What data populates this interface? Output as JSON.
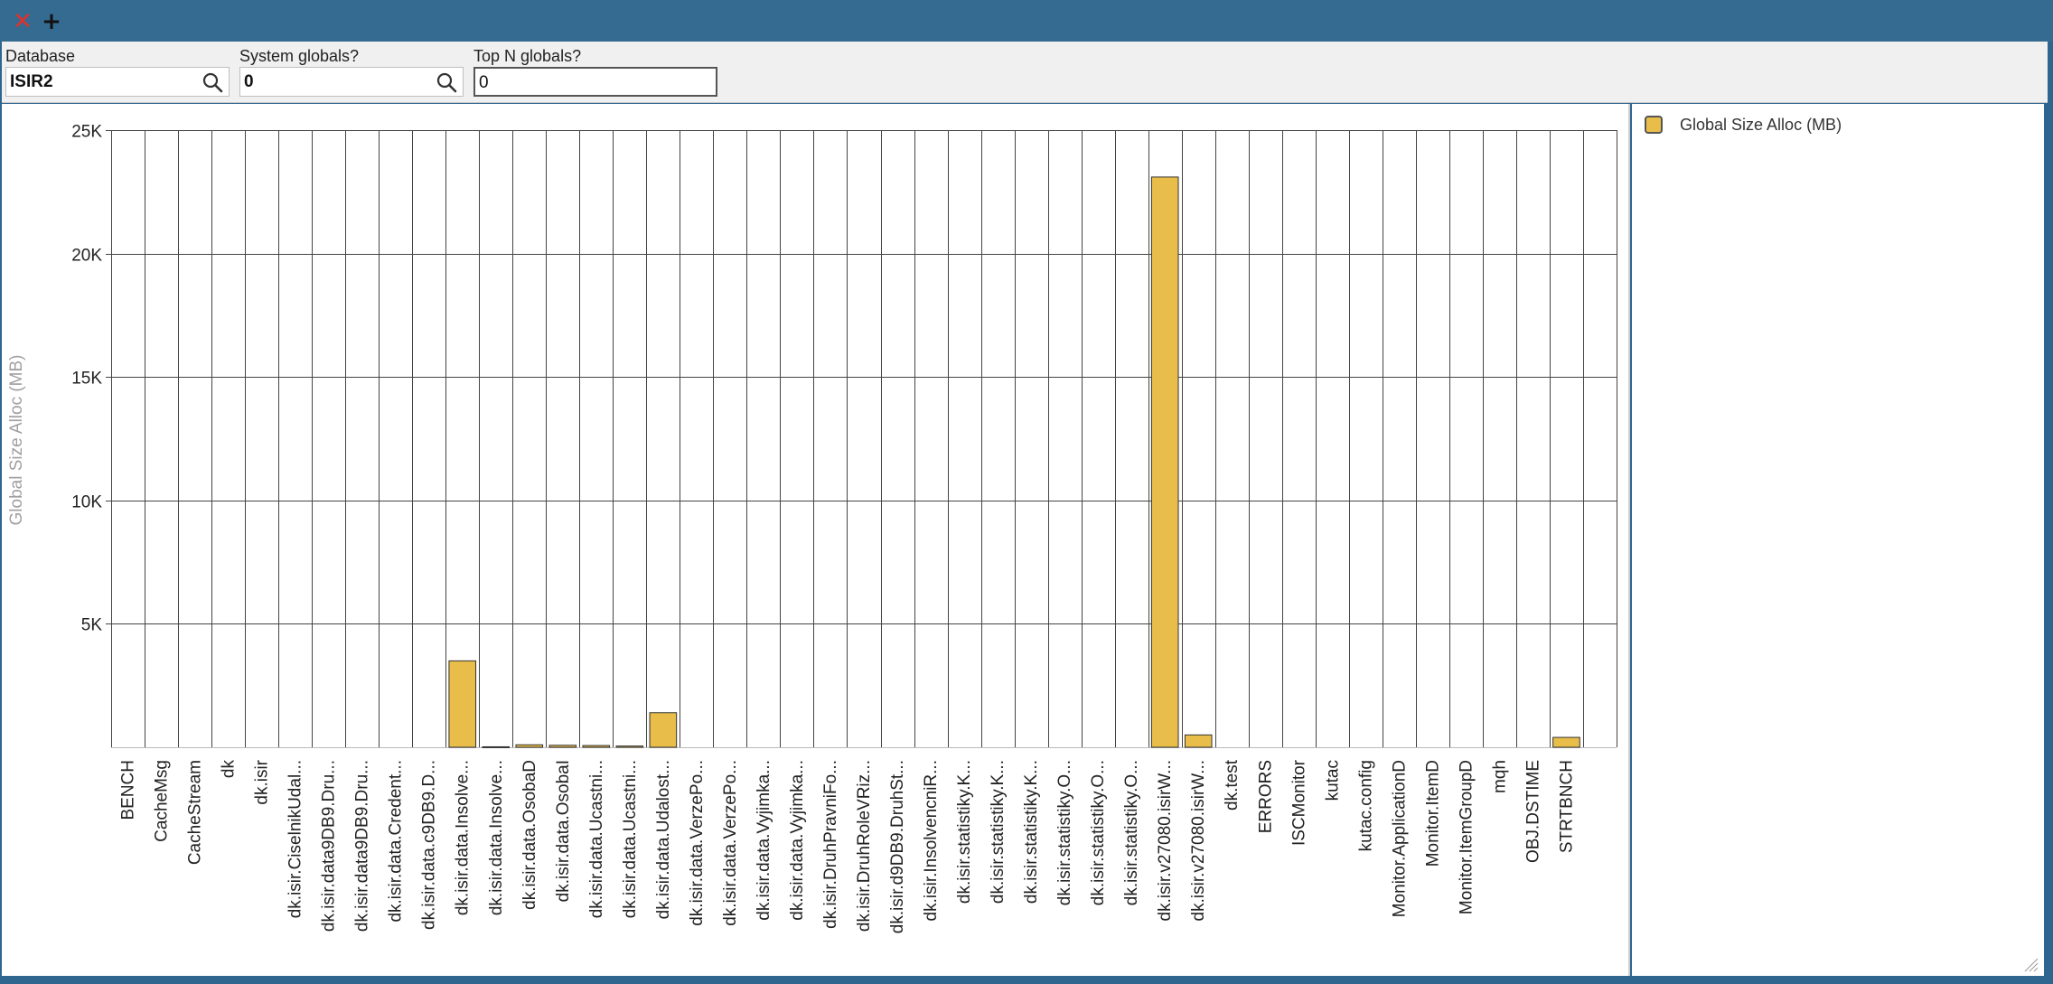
{
  "toolbar": {
    "close_icon": "close-icon",
    "add_icon": "add-icon",
    "database_label": "Database",
    "database_value": "ISIR2",
    "system_globals_label": "System globals?",
    "system_globals_value": "0",
    "topn_label": "Top N globals?",
    "topn_value": "0"
  },
  "colors": {
    "bar": "#e8bd4a",
    "bar_stroke": "#333333",
    "grid": "#444444",
    "axis_label": "#a0a0a0",
    "titlebar": "#356b91"
  },
  "chart_data": {
    "type": "bar",
    "title": "",
    "xlabel": "",
    "ylabel": "Global Size Alloc (MB)",
    "ylim": [
      0,
      25000
    ],
    "yticks": [
      {
        "value": 5000,
        "label": "5K"
      },
      {
        "value": 10000,
        "label": "10K"
      },
      {
        "value": 15000,
        "label": "15K"
      },
      {
        "value": 20000,
        "label": "20K"
      },
      {
        "value": 25000,
        "label": "25K"
      }
    ],
    "grid": true,
    "legend": "right",
    "series": [
      {
        "name": "Global Size Alloc (MB)",
        "color": "#e8bd4a",
        "values": [
          0,
          0,
          0,
          0,
          0,
          0,
          0,
          0,
          0,
          0,
          3500,
          20,
          100,
          80,
          70,
          50,
          1400,
          0,
          0,
          0,
          0,
          0,
          0,
          0,
          0,
          0,
          0,
          0,
          0,
          0,
          0,
          23100,
          500,
          0,
          0,
          0,
          0,
          0,
          0,
          0,
          0,
          0,
          0,
          400,
          0
        ]
      }
    ],
    "categories": [
      "BENCH",
      "CacheMsg",
      "CacheStream",
      "dk",
      "dk.isir",
      "dk.isir.CiselnikUdal...",
      "dk.isir.data9DB9.Dru...",
      "dk.isir.data9DB9.Dru...",
      "dk.isir.data.Credent...",
      "dk.isir.data.c9DB9.D...",
      "dk.isir.data.Insolve...",
      "dk.isir.data.Insolve...",
      "dk.isir.data.OsobaD",
      "dk.isir.data.OsobaI",
      "dk.isir.data.Ucastni...",
      "dk.isir.data.Ucastni...",
      "dk.isir.data.Udalost...",
      "dk.isir.data.VerzePo...",
      "dk.isir.data.VerzePo...",
      "dk.isir.data.Vyjimka...",
      "dk.isir.data.Vyjimka...",
      "dk.isir.DruhPravniFo...",
      "dk.isir.DruhRoleVRiz...",
      "dk.isir.d9DB9.DruhSt...",
      "dk.isir.InsolvencniR...",
      "dk.isir.statistiky.K...",
      "dk.isir.statistiky.K...",
      "dk.isir.statistiky.K...",
      "dk.isir.statistiky.O...",
      "dk.isir.statistiky.O...",
      "dk.isir.statistiky.O...",
      "dk.isir.v27080.isirW...",
      "dk.isir.v27080.isirW...",
      "dk.test",
      "ERRORS",
      "ISCMonitor",
      "kutac",
      "kutac.config",
      "Monitor.ApplicationD",
      "Monitor.ItemD",
      "Monitor.ItemGroupD",
      "mqh",
      "OBJ.DSTIME",
      "STRTBNCH",
      ""
    ]
  }
}
